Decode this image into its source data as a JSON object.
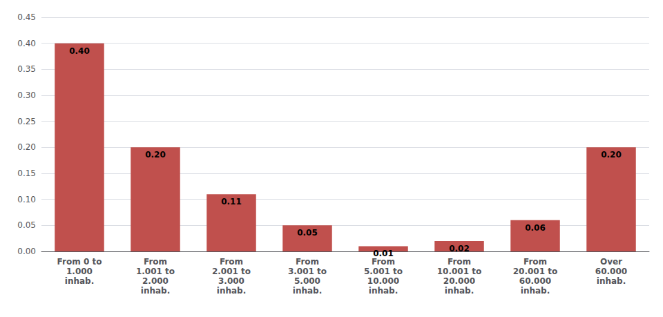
{
  "chart_data": {
    "type": "bar",
    "categories": [
      "From 0 to\n1.000\ninhab.",
      "From\n1.001 to\n2.000\ninhab.",
      "From\n2.001 to\n3.000\ninhab.",
      "From\n3.001 to\n5.000\ninhab.",
      "From\n5.001 to\n10.000\ninhab.",
      "From\n10.001 to\n20.000\ninhab.",
      "From\n20.001 to\n60.000\ninhab.",
      "Over\n60.000\ninhab."
    ],
    "values": [
      0.4,
      0.2,
      0.11,
      0.05,
      0.01,
      0.02,
      0.06,
      0.2
    ],
    "value_labels": [
      "0.40",
      "0.20",
      "0.11",
      "0.05",
      "0.01",
      "0.02",
      "0.06",
      "0.20"
    ],
    "data_labels": true,
    "color": "#c0504d",
    "ylim": [
      0,
      0.45
    ],
    "yticks": [
      {
        "value": 0,
        "label": "0.00"
      },
      0.05,
      {
        "value": 0.1,
        "label": "0.10"
      },
      0.15,
      {
        "value": 0.2,
        "label": "0.20"
      },
      0.25,
      {
        "value": 0.3,
        "label": "0.30"
      },
      0.35,
      {
        "value": 0.4,
        "label": "0.40"
      },
      0.45
    ],
    "grid": true
  }
}
